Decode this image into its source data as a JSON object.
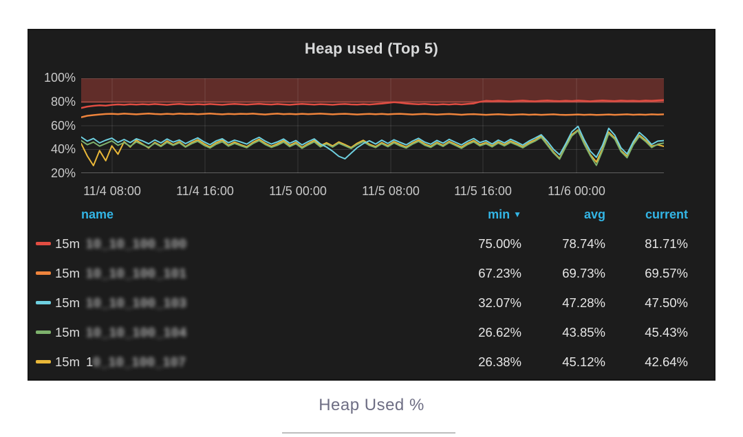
{
  "panel": {
    "title": "Heap used (Top 5)"
  },
  "caption": {
    "text": "Heap Used %"
  },
  "colors": {
    "page_bg": "#ffffff",
    "panel_bg": "#1c1c1c",
    "title_text": "#d8d9da",
    "axis_text": "#c9c9c9",
    "legend_header": "#33b5e5",
    "value_text": "#e6e6e6",
    "grid": "rgba(255,255,255,0.13)",
    "threshold_fill": "rgba(226,77,66,0.35)",
    "caption_text": "#6e6e84"
  },
  "legend": {
    "headers": {
      "name": "name",
      "min": "min",
      "avg": "avg",
      "current": "current"
    },
    "sorted_by": "min",
    "sort_icon": "▼",
    "rows": [
      {
        "interval": "15m",
        "name_prefix": "",
        "name_blurred": "10_10_100_100",
        "blurred": true,
        "color": "#e24d42",
        "min": "75.00%",
        "avg": "78.74%",
        "current": "81.71%"
      },
      {
        "interval": "15m",
        "name_prefix": "",
        "name_blurred": "10_10_100_101",
        "blurred": true,
        "color": "#ef843c",
        "min": "67.23%",
        "avg": "69.73%",
        "current": "69.57%"
      },
      {
        "interval": "15m",
        "name_prefix": "",
        "name_blurred": "10_10_100_103",
        "blurred": true,
        "color": "#6ed0e0",
        "min": "32.07%",
        "avg": "47.28%",
        "current": "47.50%"
      },
      {
        "interval": "15m",
        "name_prefix": "",
        "name_blurred": "10_10_100_104",
        "blurred": true,
        "color": "#7eb26d",
        "min": "26.62%",
        "avg": "43.85%",
        "current": "45.43%"
      },
      {
        "interval": "15m",
        "name_prefix": "1",
        "name_blurred": "0_10_100_107",
        "blurred": true,
        "color": "#eab839",
        "min": "26.38%",
        "avg": "45.12%",
        "current": "42.64%"
      }
    ]
  },
  "chart_data": {
    "type": "line",
    "title": "Heap used (Top 5)",
    "xlabel": "",
    "ylabel": "Heap used %",
    "ylim": [
      20,
      100
    ],
    "grid": true,
    "legend_position": "bottom-table",
    "y_ticks": [
      "100%",
      "80%",
      "60%",
      "40%",
      "20%"
    ],
    "y_gridlines": [
      80,
      60,
      40
    ],
    "x_ticks": [
      {
        "label": "11/4 08:00",
        "f": 0.0531
      },
      {
        "label": "11/4 16:00",
        "f": 0.2125
      },
      {
        "label": "11/5 00:00",
        "f": 0.3719
      },
      {
        "label": "11/5 08:00",
        "f": 0.5313
      },
      {
        "label": "11/5 16:00",
        "f": 0.6895
      },
      {
        "label": "11/6 00:00",
        "f": 0.8501
      }
    ],
    "threshold": {
      "from": 80,
      "to": 100,
      "fill": "rgba(226,77,66,0.35)",
      "line": "rgba(226,77,66,0.55)"
    },
    "series": [
      {
        "name": "15m 10_10_100_100",
        "color": "#e24d42",
        "width": 2.5,
        "values": [
          75.0,
          76.2,
          76.8,
          77.3,
          77.0,
          77.6,
          78.0,
          77.7,
          78.1,
          77.8,
          78.2,
          77.9,
          78.3,
          78.0,
          77.6,
          78.1,
          78.4,
          78.0,
          77.8,
          78.2,
          77.9,
          78.3,
          78.0,
          77.7,
          78.1,
          78.4,
          78.1,
          77.8,
          78.2,
          78.5,
          78.1,
          77.9,
          78.3,
          78.0,
          77.7,
          78.1,
          78.4,
          78.1,
          77.8,
          78.2,
          78.0,
          77.7,
          78.1,
          78.3,
          78.0,
          77.8,
          78.2,
          77.9,
          78.3,
          78.7,
          79.3,
          79.9,
          79.4,
          78.8,
          78.4,
          78.1,
          78.4,
          78.0,
          77.8,
          78.2,
          77.9,
          78.3,
          78.0,
          78.4,
          78.8,
          80.2,
          81.0,
          80.7,
          81.1,
          80.8,
          80.5,
          80.9,
          81.2,
          80.8,
          80.6,
          81.0,
          81.3,
          80.9,
          80.7,
          81.1,
          80.8,
          81.2,
          80.9,
          80.6,
          81.0,
          81.3,
          81.0,
          80.8,
          81.2,
          80.9,
          81.1,
          80.8,
          81.2,
          81.0,
          81.4,
          81.7
        ]
      },
      {
        "name": "15m 10_10_100_101",
        "color": "#ef843c",
        "width": 2.5,
        "values": [
          67.2,
          68.4,
          69.0,
          69.5,
          69.9,
          70.1,
          69.8,
          70.2,
          69.9,
          69.6,
          70.0,
          70.3,
          69.9,
          69.7,
          70.1,
          69.8,
          70.2,
          69.9,
          70.1,
          69.7,
          70.0,
          70.3,
          69.9,
          69.6,
          70.0,
          69.8,
          70.1,
          69.9,
          70.2,
          69.8,
          69.5,
          69.9,
          70.2,
          69.8,
          70.0,
          69.7,
          70.1,
          69.8,
          70.0,
          70.2,
          69.9,
          69.6,
          69.9,
          70.1,
          69.8,
          69.5,
          69.8,
          70.0,
          69.7,
          70.0,
          69.6,
          69.9,
          70.1,
          69.8,
          69.5,
          69.8,
          70.0,
          69.7,
          69.4,
          69.7,
          69.9,
          69.6,
          69.3,
          69.6,
          69.8,
          69.5,
          69.2,
          69.5,
          69.7,
          69.4,
          69.2,
          69.4,
          69.6,
          69.3,
          69.5,
          69.2,
          69.4,
          69.6,
          69.3,
          69.1,
          69.3,
          69.5,
          69.2,
          69.4,
          69.1,
          69.3,
          69.5,
          69.2,
          69.4,
          69.6,
          69.3,
          69.5,
          69.3,
          69.6,
          69.4,
          69.6
        ]
      },
      {
        "name": "15m 10_10_100_103",
        "color": "#6ed0e0",
        "width": 2,
        "values": [
          50.5,
          47.0,
          49.2,
          45.5,
          47.8,
          49.5,
          46.0,
          48.4,
          45.8,
          49.0,
          47.2,
          44.8,
          48.0,
          45.5,
          48.8,
          46.2,
          48.0,
          44.9,
          47.4,
          49.8,
          46.5,
          44.0,
          47.2,
          49.0,
          45.6,
          47.9,
          46.3,
          44.5,
          47.8,
          50.2,
          47.0,
          44.6,
          46.4,
          48.8,
          45.2,
          47.5,
          43.8,
          46.6,
          48.9,
          44.7,
          42.0,
          38.5,
          34.2,
          32.1,
          36.8,
          41.5,
          45.0,
          47.3,
          44.6,
          47.8,
          45.1,
          48.2,
          46.0,
          43.9,
          47.0,
          49.4,
          46.2,
          44.4,
          47.6,
          45.3,
          48.5,
          46.1,
          43.8,
          46.9,
          49.2,
          45.8,
          47.4,
          44.6,
          47.9,
          45.5,
          48.6,
          46.3,
          43.7,
          47.1,
          49.6,
          52.4,
          46.8,
          40.2,
          35.5,
          44.8,
          55.0,
          59.5,
          48.2,
          38.6,
          33.4,
          43.5,
          57.8,
          52.0,
          41.4,
          36.2,
          46.5,
          54.3,
          49.8,
          44.2,
          47.0,
          47.5
        ]
      },
      {
        "name": "15m 10_10_100_104",
        "color": "#7eb26d",
        "width": 2,
        "values": [
          47.5,
          44.0,
          46.2,
          42.8,
          45.0,
          47.2,
          43.5,
          45.8,
          42.6,
          46.4,
          44.0,
          41.8,
          45.2,
          42.5,
          46.0,
          43.4,
          45.6,
          42.0,
          44.8,
          46.9,
          43.6,
          41.2,
          44.4,
          46.5,
          42.8,
          45.1,
          43.2,
          41.5,
          44.9,
          47.4,
          44.2,
          41.8,
          43.6,
          46.2,
          42.4,
          44.8,
          41.0,
          43.9,
          46.4,
          42.2,
          44.6,
          42.0,
          45.3,
          43.1,
          40.8,
          44.2,
          46.6,
          43.4,
          41.6,
          44.8,
          42.3,
          45.5,
          43.0,
          41.2,
          44.4,
          46.8,
          43.6,
          41.8,
          45.0,
          42.6,
          45.8,
          43.4,
          41.0,
          44.2,
          46.4,
          43.0,
          44.8,
          42.2,
          45.4,
          43.0,
          46.0,
          43.8,
          41.4,
          44.6,
          47.0,
          50.2,
          43.6,
          37.0,
          31.8,
          42.0,
          51.5,
          55.8,
          44.6,
          34.8,
          26.6,
          39.0,
          53.4,
          48.6,
          38.2,
          33.0,
          43.8,
          51.0,
          46.8,
          41.6,
          44.4,
          45.4
        ]
      },
      {
        "name": "15m 10_10_100_107",
        "color": "#eab839",
        "width": 2,
        "values": [
          45.0,
          34.5,
          26.4,
          39.0,
          30.5,
          43.0,
          36.0,
          46.5,
          42.0,
          47.8,
          44.5,
          41.2,
          46.0,
          43.0,
          47.2,
          44.0,
          46.6,
          42.4,
          45.8,
          48.2,
          44.8,
          42.0,
          45.6,
          47.8,
          43.6,
          46.2,
          44.0,
          42.2,
          46.0,
          48.6,
          45.2,
          42.6,
          44.8,
          47.4,
          43.4,
          45.9,
          41.8,
          44.9,
          47.6,
          43.2,
          45.6,
          43.0,
          46.3,
          44.1,
          41.6,
          45.2,
          47.7,
          44.4,
          42.4,
          45.8,
          43.2,
          46.6,
          44.2,
          42.0,
          45.4,
          47.9,
          44.6,
          42.6,
          46.0,
          43.4,
          46.8,
          44.4,
          42.0,
          45.2,
          47.5,
          44.0,
          45.8,
          43.0,
          46.4,
          44.0,
          47.0,
          44.8,
          42.2,
          45.6,
          48.0,
          51.4,
          44.4,
          37.8,
          32.5,
          43.0,
          52.6,
          56.4,
          45.6,
          35.8,
          29.4,
          40.5,
          54.6,
          49.6,
          39.0,
          34.4,
          44.8,
          52.0,
          47.8,
          42.8,
          44.0,
          42.6
        ]
      }
    ]
  }
}
